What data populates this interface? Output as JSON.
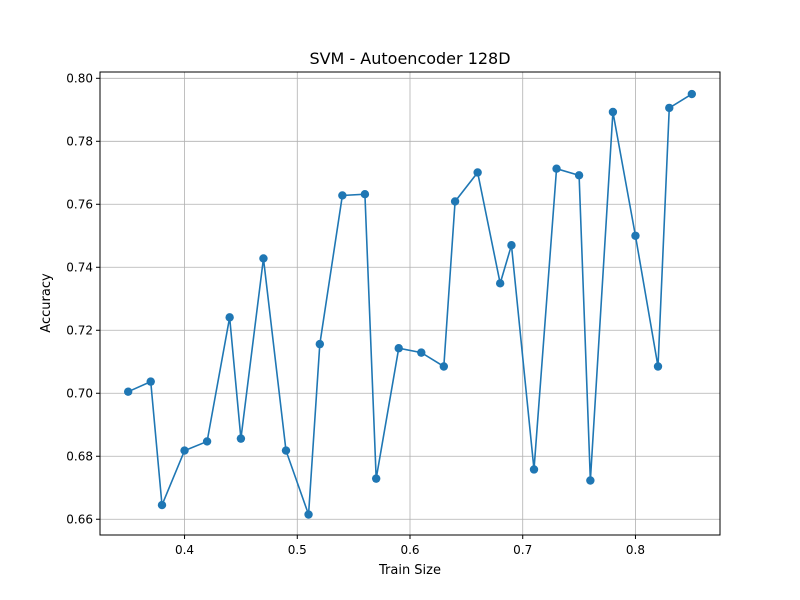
{
  "chart_data": {
    "type": "line",
    "title": "SVM - Autoencoder 128D",
    "xlabel": "Train Size",
    "ylabel": "Accuracy",
    "xlim": [
      0.325,
      0.875
    ],
    "ylim": [
      0.655,
      0.802
    ],
    "xticks": [
      0.4,
      0.5,
      0.6,
      0.7,
      0.8
    ],
    "xtick_labels": [
      "0.4",
      "0.5",
      "0.6",
      "0.7",
      "0.8"
    ],
    "yticks": [
      0.66,
      0.68,
      0.7,
      0.72,
      0.74,
      0.76,
      0.78,
      0.8
    ],
    "ytick_labels": [
      "0.66",
      "0.68",
      "0.70",
      "0.72",
      "0.74",
      "0.76",
      "0.78",
      "0.80"
    ],
    "grid": true,
    "color": "#1f77b4",
    "marker": "circle",
    "series": [
      {
        "x": [
          0.35,
          0.37,
          0.38,
          0.4,
          0.42,
          0.44,
          0.45,
          0.47,
          0.49,
          0.51,
          0.52,
          0.54,
          0.56,
          0.57,
          0.59,
          0.61,
          0.63,
          0.64,
          0.66,
          0.68,
          0.69,
          0.71,
          0.73,
          0.75,
          0.76,
          0.78,
          0.8,
          0.82,
          0.83,
          0.85
        ],
        "y": [
          0.7005,
          0.7037,
          0.6645,
          0.6818,
          0.6847,
          0.7241,
          0.6856,
          0.7428,
          0.6818,
          0.6615,
          0.7156,
          0.7628,
          0.7632,
          0.6729,
          0.7143,
          0.7129,
          0.7085,
          0.7609,
          0.7701,
          0.7349,
          0.747,
          0.6758,
          0.7713,
          0.7692,
          0.6723,
          0.7893,
          0.75,
          0.7085,
          0.7906,
          0.795
        ]
      }
    ]
  }
}
